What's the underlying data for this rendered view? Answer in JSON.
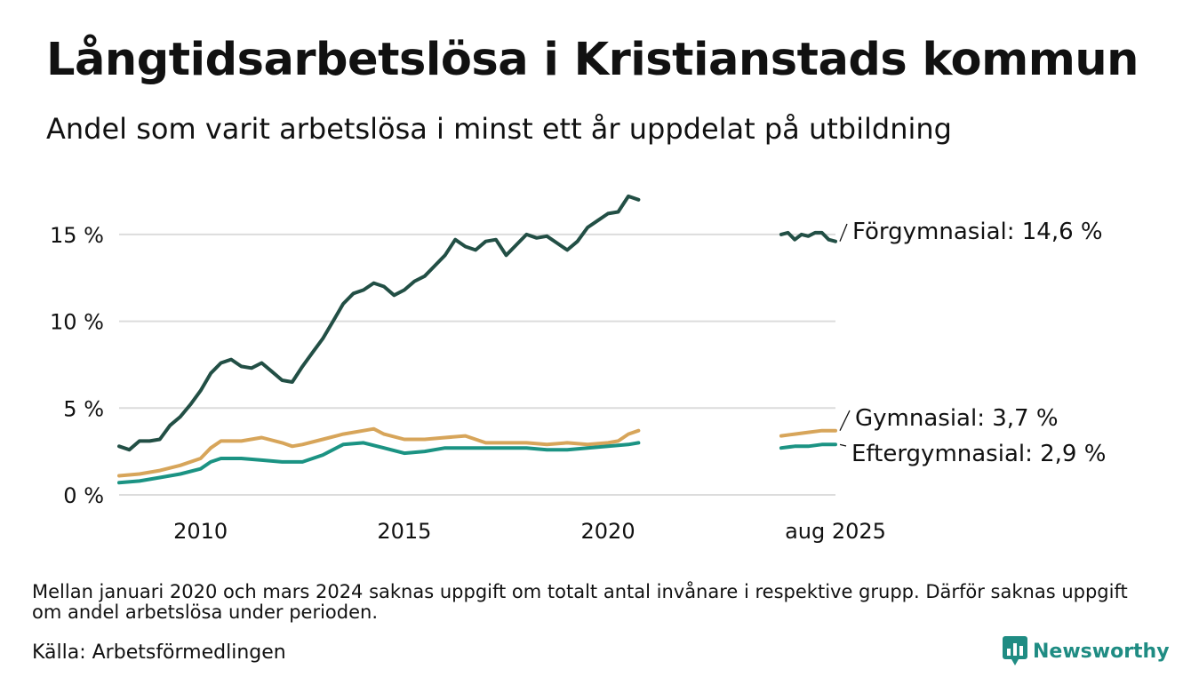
{
  "header": {
    "title": "Långtidsarbetslösa i Kristianstads kommun",
    "subtitle": "Andel som varit arbetslösa i minst ett år uppdelat på utbildning"
  },
  "footer": {
    "note": "Mellan januari 2020 och mars 2024 saknas uppgift om totalt antal invånare i respektive grupp. Därför saknas uppgift om andel arbetslösa under perioden.",
    "source": "Källa: Arbetsförmedlingen",
    "brand": "Newsworthy"
  },
  "colors": {
    "forgymnasial": "#224f45",
    "gymnasial": "#d7a55a",
    "eftergymnasial": "#1b9383",
    "grid": "#dcdcdc",
    "brand": "#1f8c83"
  },
  "icons": {
    "brand": "newsworthy-logo-icon"
  },
  "chart_data": {
    "type": "line",
    "xlim": [
      "2008-01",
      "2025-08"
    ],
    "ylim": [
      0,
      17.5
    ],
    "yticks": [
      0,
      5,
      10,
      15
    ],
    "ytick_labels": [
      "0 %",
      "5 %",
      "10 %",
      "15 %"
    ],
    "xticks": [
      "2010-01",
      "2015-01",
      "2020-01",
      "2025-08"
    ],
    "xtick_labels": [
      "2010",
      "2015",
      "2020",
      "aug 2025"
    ],
    "grid": true,
    "series": [
      {
        "name": "Förgymnasial",
        "end_label": "Förgymnasial: 14,6 %",
        "color": "#224f45",
        "segments": [
          [
            [
              "2008-01",
              2.8
            ],
            [
              "2008-04",
              2.6
            ],
            [
              "2008-07",
              3.1
            ],
            [
              "2008-10",
              3.1
            ],
            [
              "2009-01",
              3.2
            ],
            [
              "2009-04",
              4.0
            ],
            [
              "2009-07",
              4.5
            ],
            [
              "2009-10",
              5.2
            ],
            [
              "2010-01",
              6.0
            ],
            [
              "2010-04",
              7.0
            ],
            [
              "2010-07",
              7.6
            ],
            [
              "2010-10",
              7.8
            ],
            [
              "2011-01",
              7.4
            ],
            [
              "2011-04",
              7.3
            ],
            [
              "2011-07",
              7.6
            ],
            [
              "2011-10",
              7.1
            ],
            [
              "2012-01",
              6.6
            ],
            [
              "2012-04",
              6.5
            ],
            [
              "2012-07",
              7.4
            ],
            [
              "2012-10",
              8.2
            ],
            [
              "2013-01",
              9.0
            ],
            [
              "2013-04",
              10.0
            ],
            [
              "2013-07",
              11.0
            ],
            [
              "2013-10",
              11.6
            ],
            [
              "2014-01",
              11.8
            ],
            [
              "2014-04",
              12.2
            ],
            [
              "2014-07",
              12.0
            ],
            [
              "2014-10",
              11.5
            ],
            [
              "2015-01",
              11.8
            ],
            [
              "2015-04",
              12.3
            ],
            [
              "2015-07",
              12.6
            ],
            [
              "2015-10",
              13.2
            ],
            [
              "2016-01",
              13.8
            ],
            [
              "2016-04",
              14.7
            ],
            [
              "2016-07",
              14.3
            ],
            [
              "2016-10",
              14.1
            ],
            [
              "2017-01",
              14.6
            ],
            [
              "2017-04",
              14.7
            ],
            [
              "2017-07",
              13.8
            ],
            [
              "2017-10",
              14.4
            ],
            [
              "2018-01",
              15.0
            ],
            [
              "2018-04",
              14.8
            ],
            [
              "2018-07",
              14.9
            ],
            [
              "2018-10",
              14.5
            ],
            [
              "2019-01",
              14.1
            ],
            [
              "2019-04",
              14.6
            ],
            [
              "2019-07",
              15.4
            ],
            [
              "2019-10",
              15.8
            ],
            [
              "2020-01",
              16.2
            ],
            [
              "2020-04",
              16.3
            ],
            [
              "2020-07",
              17.2
            ],
            [
              "2020-10",
              17.0
            ]
          ],
          [
            [
              "2024-04",
              15.0
            ],
            [
              "2024-06",
              15.1
            ],
            [
              "2024-08",
              14.7
            ],
            [
              "2024-10",
              15.0
            ],
            [
              "2024-12",
              14.9
            ],
            [
              "2025-02",
              15.1
            ],
            [
              "2025-04",
              15.1
            ],
            [
              "2025-06",
              14.7
            ],
            [
              "2025-08",
              14.6
            ]
          ]
        ]
      },
      {
        "name": "Gymnasial",
        "end_label": "Gymnasial:  3,7 %",
        "color": "#d7a55a",
        "segments": [
          [
            [
              "2008-01",
              1.1
            ],
            [
              "2008-07",
              1.2
            ],
            [
              "2009-01",
              1.4
            ],
            [
              "2009-07",
              1.7
            ],
            [
              "2010-01",
              2.1
            ],
            [
              "2010-04",
              2.7
            ],
            [
              "2010-07",
              3.1
            ],
            [
              "2011-01",
              3.1
            ],
            [
              "2011-07",
              3.3
            ],
            [
              "2012-01",
              3.0
            ],
            [
              "2012-04",
              2.8
            ],
            [
              "2012-07",
              2.9
            ],
            [
              "2013-01",
              3.2
            ],
            [
              "2013-07",
              3.5
            ],
            [
              "2014-01",
              3.7
            ],
            [
              "2014-04",
              3.8
            ],
            [
              "2014-07",
              3.5
            ],
            [
              "2015-01",
              3.2
            ],
            [
              "2015-07",
              3.2
            ],
            [
              "2016-01",
              3.3
            ],
            [
              "2016-07",
              3.4
            ],
            [
              "2017-01",
              3.0
            ],
            [
              "2017-07",
              3.0
            ],
            [
              "2018-01",
              3.0
            ],
            [
              "2018-07",
              2.9
            ],
            [
              "2019-01",
              3.0
            ],
            [
              "2019-07",
              2.9
            ],
            [
              "2020-01",
              3.0
            ],
            [
              "2020-04",
              3.1
            ],
            [
              "2020-07",
              3.5
            ],
            [
              "2020-10",
              3.7
            ]
          ],
          [
            [
              "2024-04",
              3.4
            ],
            [
              "2024-08",
              3.5
            ],
            [
              "2024-12",
              3.6
            ],
            [
              "2025-04",
              3.7
            ],
            [
              "2025-08",
              3.7
            ]
          ]
        ]
      },
      {
        "name": "Eftergymnasial",
        "end_label": "Eftergymnasial:  2,9 %",
        "color": "#1b9383",
        "segments": [
          [
            [
              "2008-01",
              0.7
            ],
            [
              "2008-07",
              0.8
            ],
            [
              "2009-01",
              1.0
            ],
            [
              "2009-07",
              1.2
            ],
            [
              "2010-01",
              1.5
            ],
            [
              "2010-04",
              1.9
            ],
            [
              "2010-07",
              2.1
            ],
            [
              "2011-01",
              2.1
            ],
            [
              "2011-07",
              2.0
            ],
            [
              "2012-01",
              1.9
            ],
            [
              "2012-07",
              1.9
            ],
            [
              "2013-01",
              2.3
            ],
            [
              "2013-07",
              2.9
            ],
            [
              "2014-01",
              3.0
            ],
            [
              "2014-07",
              2.7
            ],
            [
              "2015-01",
              2.4
            ],
            [
              "2015-07",
              2.5
            ],
            [
              "2016-01",
              2.7
            ],
            [
              "2016-07",
              2.7
            ],
            [
              "2017-01",
              2.7
            ],
            [
              "2017-07",
              2.7
            ],
            [
              "2018-01",
              2.7
            ],
            [
              "2018-07",
              2.6
            ],
            [
              "2019-01",
              2.6
            ],
            [
              "2019-07",
              2.7
            ],
            [
              "2020-01",
              2.8
            ],
            [
              "2020-07",
              2.9
            ],
            [
              "2020-10",
              3.0
            ]
          ],
          [
            [
              "2024-04",
              2.7
            ],
            [
              "2024-08",
              2.8
            ],
            [
              "2024-12",
              2.8
            ],
            [
              "2025-04",
              2.9
            ],
            [
              "2025-08",
              2.9
            ]
          ]
        ]
      }
    ]
  }
}
